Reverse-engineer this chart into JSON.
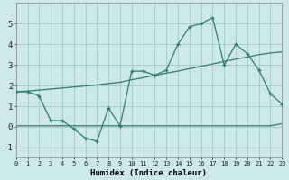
{
  "title": "",
  "xlabel": "Humidex (Indice chaleur)",
  "background_color": "#cce8e8",
  "grid_color": "#aacccc",
  "line_color": "#2e7d6e",
  "x_data": [
    0,
    1,
    2,
    3,
    4,
    5,
    6,
    7,
    8,
    9,
    10,
    11,
    12,
    13,
    14,
    15,
    16,
    17,
    18,
    19,
    20,
    21,
    22,
    23
  ],
  "y_main": [
    1.7,
    1.7,
    1.5,
    0.3,
    0.3,
    -0.1,
    -0.55,
    -0.7,
    0.9,
    0.05,
    2.7,
    2.7,
    2.5,
    2.75,
    4.0,
    4.85,
    5.0,
    5.3,
    3.0,
    4.0,
    3.55,
    2.75,
    1.6,
    1.1
  ],
  "y_trend_upper": [
    1.7,
    1.73,
    1.78,
    1.83,
    1.88,
    1.93,
    1.98,
    2.03,
    2.1,
    2.16,
    2.28,
    2.38,
    2.5,
    2.6,
    2.7,
    2.82,
    2.93,
    3.05,
    3.17,
    3.28,
    3.38,
    3.5,
    3.58,
    3.63
  ],
  "y_trend_lower": [
    0.05,
    0.05,
    0.05,
    0.05,
    0.05,
    0.05,
    0.05,
    0.05,
    0.05,
    0.05,
    0.05,
    0.05,
    0.05,
    0.05,
    0.05,
    0.05,
    0.05,
    0.05,
    0.05,
    0.05,
    0.05,
    0.05,
    0.05,
    0.15
  ],
  "xlim": [
    0,
    23
  ],
  "ylim": [
    -1.5,
    6.0
  ],
  "yticks": [
    -1,
    0,
    1,
    2,
    3,
    4,
    5
  ],
  "xticks": [
    0,
    1,
    2,
    3,
    4,
    5,
    6,
    7,
    8,
    9,
    10,
    11,
    12,
    13,
    14,
    15,
    16,
    17,
    18,
    19,
    20,
    21,
    22,
    23
  ]
}
